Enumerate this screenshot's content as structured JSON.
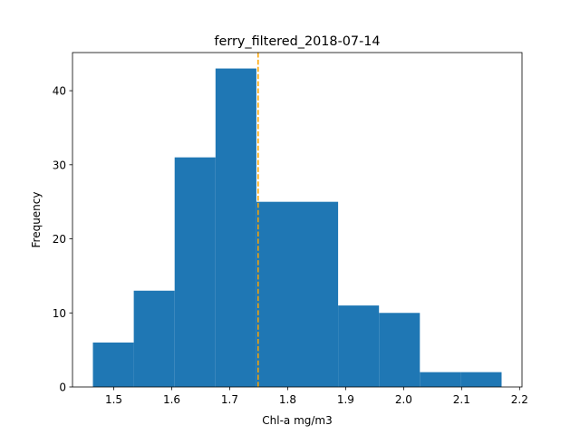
{
  "chart_data": {
    "type": "bar",
    "title": "ferry_filtered_2018-07-14",
    "xlabel": "Chl-a mg/m3",
    "ylabel": "Frequency",
    "bins": [
      {
        "start": 1.464,
        "end": 1.5345,
        "count": 6
      },
      {
        "start": 1.5345,
        "end": 1.605,
        "count": 13
      },
      {
        "start": 1.605,
        "end": 1.6755,
        "count": 31
      },
      {
        "start": 1.6755,
        "end": 1.746,
        "count": 43
      },
      {
        "start": 1.746,
        "end": 1.8165,
        "count": 25
      },
      {
        "start": 1.8165,
        "end": 1.887,
        "count": 25
      },
      {
        "start": 1.887,
        "end": 1.9575,
        "count": 11
      },
      {
        "start": 1.9575,
        "end": 2.028,
        "count": 10
      },
      {
        "start": 2.028,
        "end": 2.0985,
        "count": 2
      },
      {
        "start": 2.0985,
        "end": 2.169,
        "count": 2
      }
    ],
    "mean_line": 1.749,
    "xlim": [
      1.4288,
      2.2042
    ],
    "ylim": [
      0,
      45.15
    ],
    "xticks": [
      "1.5",
      "1.6",
      "1.7",
      "1.8",
      "1.9",
      "2.0",
      "2.1",
      "2.2"
    ],
    "xtick_values": [
      1.5,
      1.6,
      1.7,
      1.8,
      1.9,
      2.0,
      2.1,
      2.2
    ],
    "yticks": [
      "0",
      "10",
      "20",
      "30",
      "40"
    ],
    "ytick_values": [
      0,
      10,
      20,
      30,
      40
    ],
    "bar_color": "#1f77b4",
    "mean_line_color": "#ffa500",
    "grid": false,
    "legend": false
  }
}
